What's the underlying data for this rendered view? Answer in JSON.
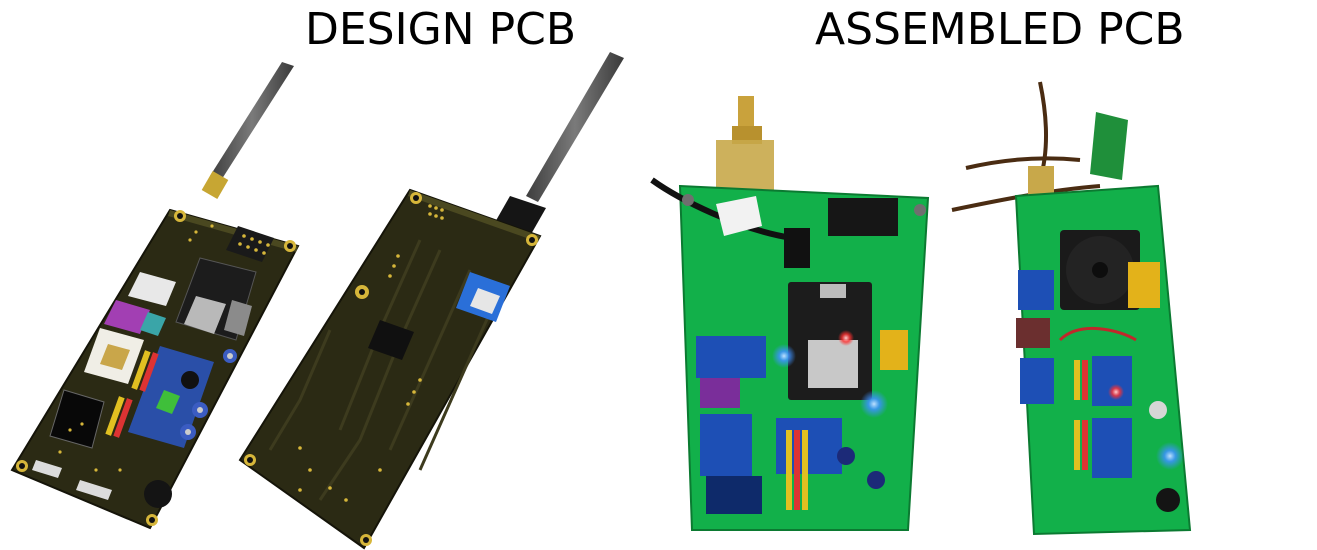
{
  "titles": {
    "design": "DESIGN PCB",
    "assembled": "ASSEMBLED PCB"
  },
  "colors": {
    "design_board": "#2b2a14",
    "design_trace": "#3d3b1e",
    "gold_pad": "#d6b63a",
    "assembled_green": "#12b04a",
    "module_blue": "#1d4fb5",
    "antenna_gray": "#5a5a5a",
    "led_blue": "#2f8cff"
  },
  "icons": [
    "antenna-icon",
    "sma-connector-icon",
    "sd-card-slot-icon",
    "led-icon",
    "buzzer-icon",
    "fan-icon"
  ]
}
